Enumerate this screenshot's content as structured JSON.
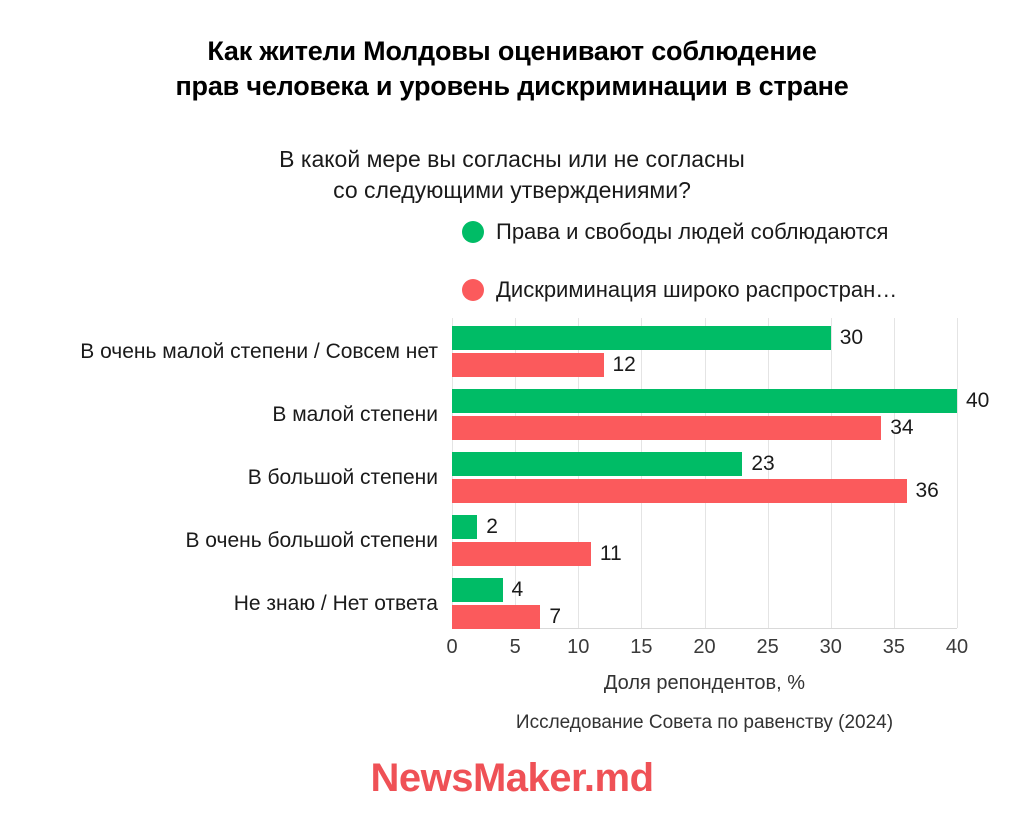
{
  "title": {
    "lines": [
      "Как жители Молдовы оценивают соблюдение",
      "прав человека и уровень дискриминации в стране"
    ]
  },
  "subtitle": {
    "lines": [
      "В какой мере вы согласны или не согласны",
      "со следующими утверждениями?"
    ]
  },
  "legend": [
    {
      "label": "Права и свободы людей соблюдаются",
      "color": "#00bc66"
    },
    {
      "label": "Дискриминация широко распростран…",
      "color": "#fb5a5c"
    }
  ],
  "chart_data": {
    "type": "bar",
    "orientation": "horizontal",
    "title": "Как жители Молдовы оценивают соблюдение прав человека и уровень дискриминации в стране",
    "subtitle": "В какой мере вы согласны или не согласны со следующими утверждениями?",
    "categories": [
      "В очень малой степени / Совсем нет",
      "В малой степени",
      "В большой степени",
      "В очень большой степени",
      "Не знаю / Нет ответа"
    ],
    "series": [
      {
        "name": "Права и свободы людей соблюдаются",
        "color": "#00bc66",
        "values": [
          30,
          40,
          23,
          2,
          4
        ]
      },
      {
        "name": "Дискриминация широко распростран…",
        "color": "#fb5a5c",
        "values": [
          12,
          34,
          36,
          11,
          7
        ]
      }
    ],
    "xlabel": "Доля репондентов, %",
    "xticks": [
      0,
      5,
      10,
      15,
      20,
      25,
      30,
      35,
      40
    ],
    "xlim": [
      0,
      40
    ],
    "grid": true,
    "legend_position": "top-right",
    "data_labels": true
  },
  "source": "Исследование Совета по равенству (2024)",
  "footer": {
    "logo": "NewsMaker.md",
    "color": "#ef5156"
  }
}
